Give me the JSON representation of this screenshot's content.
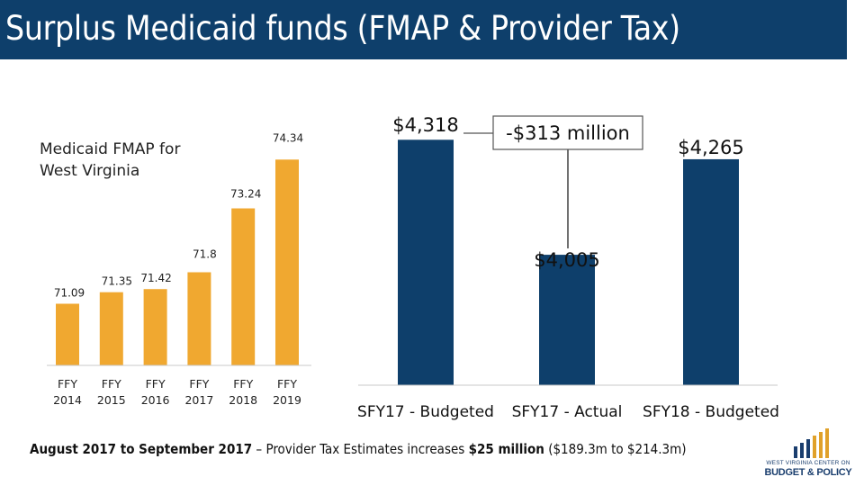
{
  "title": "Surplus Medicaid funds (FMAP & Provider Tax)",
  "colors": {
    "title_bg": "#0e3f6b",
    "fmap_bar": "#f0a830",
    "budget_bar": "#0e3f6b"
  },
  "footnote": {
    "part1": "August 2017 to September 2017",
    "part2": " – Provider Tax Estimates increases ",
    "part3": "$25 million",
    "part4": " ($189.3m to $214.3m)"
  },
  "logo": {
    "line1": "WEST VIRGINIA CENTER ON",
    "line2": "BUDGET & POLICY"
  },
  "chart_data": [
    {
      "type": "bar",
      "title": "Medicaid FMAP for West Virginia",
      "title_lines": [
        "Medicaid FMAP for",
        "West Virginia"
      ],
      "categories": [
        [
          "FFY",
          "2014"
        ],
        [
          "FFY",
          "2015"
        ],
        [
          "FFY",
          "2016"
        ],
        [
          "FFY",
          "2017"
        ],
        [
          "FFY",
          "2018"
        ],
        [
          "FFY",
          "2019"
        ]
      ],
      "values": [
        71.09,
        71.35,
        71.42,
        71.8,
        73.24,
        74.34
      ],
      "value_labels": [
        "71.09",
        "71.35",
        "71.42",
        "71.8",
        "73.24",
        "74.34"
      ],
      "ylim": [
        69.7,
        75.3
      ]
    },
    {
      "type": "bar",
      "categories": [
        "SFY17 - Budgeted",
        "SFY17 - Actual",
        "SFY18 - Budgeted"
      ],
      "values": [
        4318,
        4005,
        4265
      ],
      "value_labels": [
        "$4,318",
        "$4,005",
        "$4,265"
      ],
      "ylim": [
        3650,
        4380
      ],
      "annotation": "-$313 million"
    }
  ]
}
